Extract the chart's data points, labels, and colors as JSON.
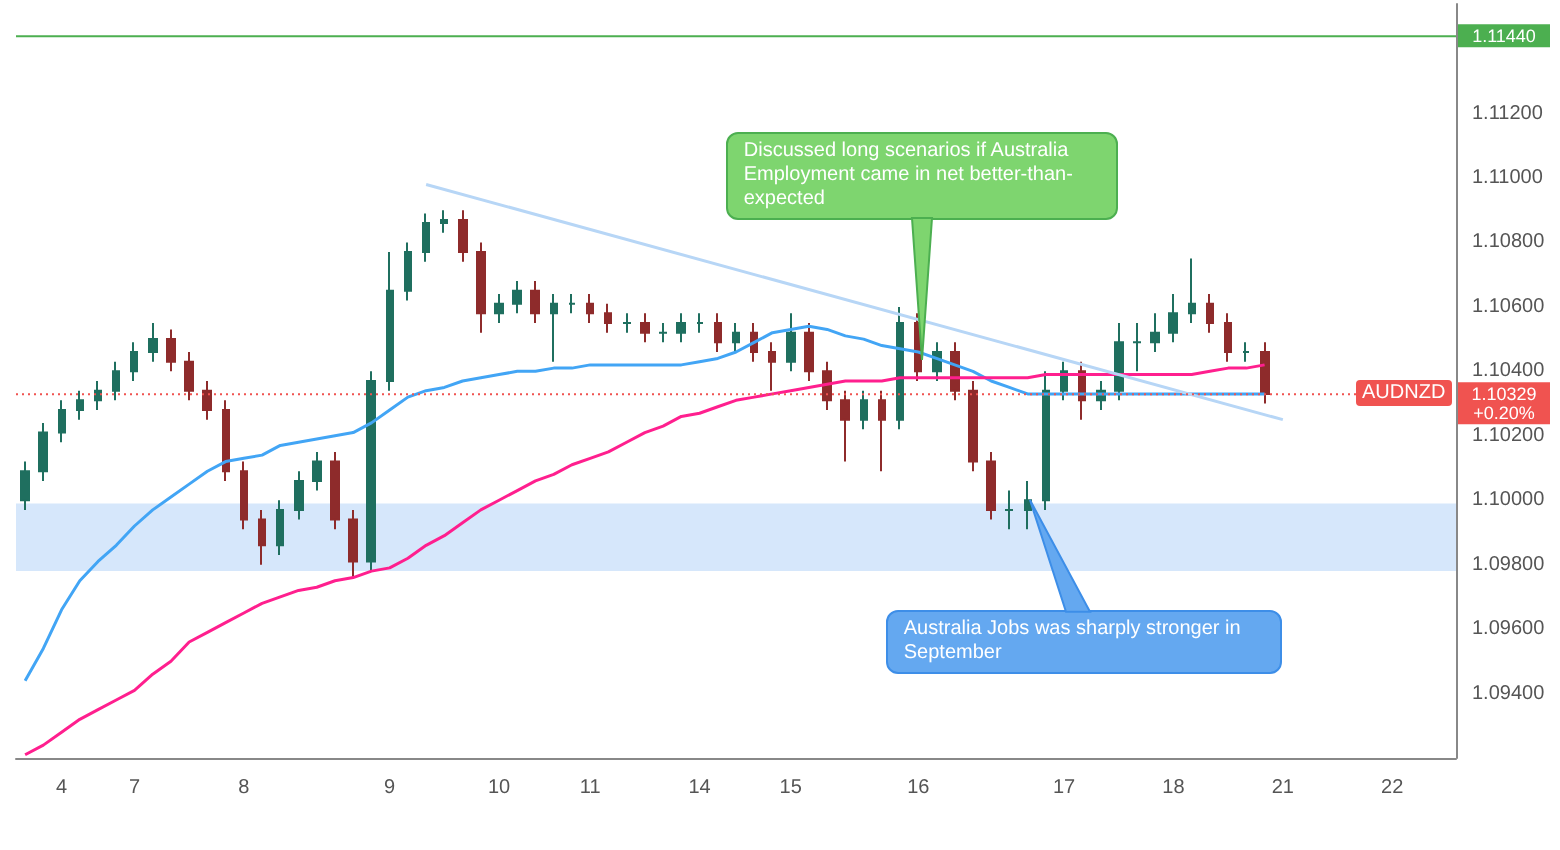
{
  "chart_data": {
    "type": "candlestick",
    "categories": [
      null,
      null,
      "4",
      null,
      null,
      null,
      "7",
      null,
      null,
      null,
      null,
      null,
      "8",
      null,
      null,
      null,
      null,
      null,
      null,
      null,
      "9",
      null,
      null,
      null,
      null,
      null,
      "10",
      null,
      null,
      null,
      null,
      "11",
      null,
      null,
      null,
      null,
      null,
      "14",
      null,
      null,
      null,
      null,
      "15",
      null,
      null,
      null,
      null,
      null,
      null,
      "16",
      null,
      null,
      null,
      null,
      null,
      null,
      null,
      "17",
      null,
      null,
      null,
      null,
      null,
      "18",
      null,
      null,
      null,
      null,
      null,
      "21",
      null,
      null,
      null,
      null,
      null,
      "22",
      null,
      null,
      null
    ],
    "ylim": [
      1.092,
      1.1154
    ],
    "yticks": [
      {
        "value": 1.094,
        "label": "1.09400"
      },
      {
        "value": 1.096,
        "label": "1.09600"
      },
      {
        "value": 1.098,
        "label": "1.09800"
      },
      {
        "value": 1.1,
        "label": "1.10000"
      },
      {
        "value": 1.102,
        "label": "1.10200"
      },
      {
        "value": 1.104,
        "label": "1.10400"
      },
      {
        "value": 1.106,
        "label": "1.10600"
      },
      {
        "value": 1.108,
        "label": "1.10800"
      },
      {
        "value": 1.11,
        "label": "1.11000"
      },
      {
        "value": 1.112,
        "label": "1.11200"
      }
    ],
    "grid": false,
    "series": [
      {
        "ohlc": [
          [
            1.1,
            1.1012,
            1.0997,
            1.1009
          ],
          [
            1.1009,
            1.1024,
            1.1006,
            1.1021
          ],
          [
            1.1021,
            1.1031,
            1.1018,
            1.1028
          ],
          [
            1.1028,
            1.1034,
            1.1025,
            1.1031
          ],
          [
            1.1031,
            1.1037,
            1.1028,
            1.1034
          ],
          [
            1.1034,
            1.1043,
            1.1031,
            1.104
          ],
          [
            1.104,
            1.1049,
            1.1037,
            1.1046
          ],
          [
            1.1046,
            1.1055,
            1.1043,
            1.105
          ],
          [
            1.105,
            1.1053,
            1.104,
            1.1043
          ],
          [
            1.1043,
            1.1046,
            1.1031,
            1.1034
          ],
          [
            1.1034,
            1.1037,
            1.1025,
            1.1028
          ],
          [
            1.1028,
            1.1031,
            1.1006,
            1.1009
          ],
          [
            1.1009,
            1.1012,
            1.0991,
            1.0994
          ],
          [
            1.0994,
            1.0997,
            1.098,
            1.0986
          ],
          [
            1.0986,
            1.1,
            1.0983,
            1.0997
          ],
          [
            1.0997,
            1.1009,
            1.0994,
            1.1006
          ],
          [
            1.1006,
            1.1015,
            1.1003,
            1.1012
          ],
          [
            1.1012,
            1.1015,
            1.0991,
            1.0994
          ],
          [
            1.0994,
            1.0997,
            1.0976,
            1.0981
          ],
          [
            1.0981,
            1.104,
            1.0978,
            1.1037
          ],
          [
            1.1037,
            1.1077,
            1.1034,
            1.1065
          ],
          [
            1.1065,
            1.108,
            1.1062,
            1.1077
          ],
          [
            1.1077,
            1.1089,
            1.1074,
            1.1086
          ],
          [
            1.1086,
            1.109,
            1.1083,
            1.1087
          ],
          [
            1.1087,
            1.109,
            1.1074,
            1.1077
          ],
          [
            1.1077,
            1.108,
            1.1052,
            1.1058
          ],
          [
            1.1058,
            1.1064,
            1.1055,
            1.1061
          ],
          [
            1.1061,
            1.1068,
            1.1058,
            1.1065
          ],
          [
            1.1065,
            1.1068,
            1.1055,
            1.1058
          ],
          [
            1.1058,
            1.1064,
            1.1043,
            1.1061
          ],
          [
            1.1061,
            1.1064,
            1.1058,
            1.1061
          ],
          [
            1.1061,
            1.1064,
            1.1055,
            1.1058
          ],
          [
            1.1058,
            1.1061,
            1.1052,
            1.1055
          ],
          [
            1.1055,
            1.1058,
            1.1052,
            1.1055
          ],
          [
            1.1055,
            1.1058,
            1.1049,
            1.1052
          ],
          [
            1.1052,
            1.1055,
            1.1049,
            1.1052
          ],
          [
            1.1052,
            1.1058,
            1.1049,
            1.1055
          ],
          [
            1.1055,
            1.1058,
            1.1052,
            1.1055
          ],
          [
            1.1055,
            1.1058,
            1.1046,
            1.1049
          ],
          [
            1.1049,
            1.1055,
            1.1046,
            1.1052
          ],
          [
            1.1052,
            1.1055,
            1.1043,
            1.1046
          ],
          [
            1.1046,
            1.1049,
            1.1034,
            1.1043
          ],
          [
            1.1043,
            1.1058,
            1.104,
            1.1052
          ],
          [
            1.1052,
            1.1055,
            1.1037,
            1.104
          ],
          [
            1.104,
            1.1043,
            1.1028,
            1.1031
          ],
          [
            1.1031,
            1.1034,
            1.1012,
            1.1025
          ],
          [
            1.1025,
            1.1034,
            1.1022,
            1.1031
          ],
          [
            1.1031,
            1.1034,
            1.1009,
            1.1025
          ],
          [
            1.1025,
            1.106,
            1.1022,
            1.1055
          ],
          [
            1.1055,
            1.1058,
            1.1037,
            1.104
          ],
          [
            1.104,
            1.1049,
            1.1037,
            1.1046
          ],
          [
            1.1046,
            1.1049,
            1.1031,
            1.1034
          ],
          [
            1.1034,
            1.1037,
            1.1009,
            1.1012
          ],
          [
            1.1012,
            1.1015,
            1.0994,
            1.0997
          ],
          [
            1.0997,
            1.1003,
            1.0991,
            1.0997
          ],
          [
            1.0997,
            1.1006,
            1.0991,
            1.1
          ],
          [
            1.1,
            1.104,
            1.0997,
            1.1034
          ],
          [
            1.1034,
            1.1043,
            1.1031,
            1.104
          ],
          [
            1.104,
            1.1043,
            1.1025,
            1.1031
          ],
          [
            1.1031,
            1.1037,
            1.1028,
            1.1034
          ],
          [
            1.1034,
            1.1055,
            1.1031,
            1.1049
          ],
          [
            1.1049,
            1.1055,
            1.104,
            1.1049
          ],
          [
            1.1049,
            1.1058,
            1.1046,
            1.1052
          ],
          [
            1.1052,
            1.1064,
            1.1049,
            1.1058
          ],
          [
            1.1058,
            1.1075,
            1.1055,
            1.1061
          ],
          [
            1.1061,
            1.1064,
            1.1052,
            1.1055
          ],
          [
            1.1055,
            1.1058,
            1.1043,
            1.1046
          ],
          [
            1.1046,
            1.1049,
            1.1043,
            1.1046
          ],
          [
            1.1046,
            1.1049,
            1.103,
            1.1033
          ],
          null,
          null,
          null,
          null,
          null,
          null,
          null,
          null,
          null,
          null
        ],
        "colors": [
          "#1f6f5f",
          "#1f6f5f",
          "#1f6f5f",
          "#1f6f5f",
          "#1f6f5f",
          "#1f6f5f",
          "#1f6f5f",
          "#1f6f5f",
          "#8e2b2b",
          "#8e2b2b",
          "#8e2b2b",
          "#8e2b2b",
          "#8e2b2b",
          "#8e2b2b",
          "#1f6f5f",
          "#1f6f5f",
          "#1f6f5f",
          "#8e2b2b",
          "#8e2b2b",
          "#1f6f5f",
          "#1f6f5f",
          "#1f6f5f",
          "#1f6f5f",
          "#1f6f5f",
          "#8e2b2b",
          "#8e2b2b",
          "#1f6f5f",
          "#1f6f5f",
          "#8e2b2b",
          "#1f6f5f",
          "#1f6f5f",
          "#8e2b2b",
          "#8e2b2b",
          "#1f6f5f",
          "#8e2b2b",
          "#1f6f5f",
          "#1f6f5f",
          "#1f6f5f",
          "#8e2b2b",
          "#1f6f5f",
          "#8e2b2b",
          "#8e2b2b",
          "#1f6f5f",
          "#8e2b2b",
          "#8e2b2b",
          "#8e2b2b",
          "#1f6f5f",
          "#8e2b2b",
          "#1f6f5f",
          "#8e2b2b",
          "#1f6f5f",
          "#8e2b2b",
          "#8e2b2b",
          "#8e2b2b",
          "#1f6f5f",
          "#1f6f5f",
          "#1f6f5f",
          "#1f6f5f",
          "#8e2b2b",
          "#1f6f5f",
          "#1f6f5f",
          "#1f6f5f",
          "#1f6f5f",
          "#1f6f5f",
          "#1f6f5f",
          "#8e2b2b",
          "#8e2b2b",
          "#1f6f5f",
          "#8e2b2b",
          null,
          null,
          null,
          null,
          null,
          null,
          null,
          null,
          null,
          null
        ]
      },
      {
        "type": "line",
        "color": "#42a5f5",
        "values": [
          1.0944,
          1.0954,
          1.0966,
          1.0975,
          1.0981,
          1.0986,
          1.0992,
          1.0997,
          1.1001,
          1.1005,
          1.1009,
          1.1012,
          1.1013,
          1.1014,
          1.1017,
          1.1018,
          1.1019,
          1.102,
          1.1021,
          1.1024,
          1.1028,
          1.1032,
          1.1034,
          1.1035,
          1.1037,
          1.1038,
          1.1039,
          1.104,
          1.104,
          1.1041,
          1.1041,
          1.1042,
          1.1042,
          1.1042,
          1.1042,
          1.1042,
          1.1042,
          1.1043,
          1.1044,
          1.1046,
          1.1049,
          1.1052,
          1.1053,
          1.1054,
          1.1053,
          1.1051,
          1.105,
          1.1048,
          1.1047,
          1.1046,
          1.1044,
          1.1042,
          1.104,
          1.1037,
          1.1035,
          1.1033,
          1.1033,
          1.1033,
          1.1033,
          1.1033,
          1.1033,
          1.1033,
          1.1033,
          1.1033,
          1.1033,
          1.1033,
          1.1033,
          1.1033,
          1.1033,
          null,
          null,
          null,
          null,
          null,
          null,
          null,
          null,
          null,
          null
        ]
      },
      {
        "type": "line",
        "color": "#ff1f8e",
        "values": [
          1.0921,
          1.0924,
          1.0928,
          1.0932,
          1.0935,
          1.0938,
          1.0941,
          1.0946,
          1.095,
          1.0956,
          1.0959,
          1.0962,
          1.0965,
          1.0968,
          1.097,
          1.0972,
          1.0973,
          1.0975,
          1.0976,
          1.0978,
          1.0979,
          1.0982,
          1.0986,
          1.0989,
          1.0993,
          1.0997,
          1.1,
          1.1003,
          1.1006,
          1.1008,
          1.1011,
          1.1013,
          1.1015,
          1.1018,
          1.1021,
          1.1023,
          1.1026,
          1.1027,
          1.1029,
          1.1031,
          1.1032,
          1.1033,
          1.1034,
          1.1035,
          1.1036,
          1.1037,
          1.1037,
          1.1037,
          1.1038,
          1.1038,
          1.1038,
          1.1038,
          1.1038,
          1.1038,
          1.1038,
          1.1038,
          1.1039,
          1.1039,
          1.1039,
          1.1039,
          1.1039,
          1.1039,
          1.1039,
          1.1039,
          1.1039,
          1.104,
          1.1041,
          1.1041,
          1.1042,
          null,
          null,
          null,
          null,
          null,
          null,
          null,
          null,
          null,
          null
        ]
      },
      {
        "type": "line",
        "color": "#b7d6f6",
        "values": [
          null,
          null,
          null,
          null,
          null,
          null,
          null,
          null,
          null,
          null,
          null,
          null,
          null,
          null,
          null,
          null,
          null,
          null,
          null,
          null,
          null,
          null,
          1.1098,
          null,
          null,
          null,
          null,
          null,
          null,
          null,
          null,
          null,
          null,
          null,
          null,
          null,
          null,
          null,
          null,
          null,
          null,
          null,
          null,
          null,
          null,
          null,
          null,
          null,
          null,
          null,
          null,
          null,
          null,
          null,
          null,
          null,
          null,
          null,
          null,
          null,
          null,
          null,
          null,
          null,
          null,
          null,
          null,
          null,
          null,
          1.1025,
          null,
          null,
          null,
          null,
          null,
          null,
          null,
          null,
          null
        ]
      }
    ],
    "bands": [
      {
        "axis": "y",
        "from": 1.0978,
        "to": 1.0999,
        "color": "#cfe3fa"
      }
    ],
    "ref_lines": [
      {
        "axis": "y",
        "value": 1.1144,
        "label": "1.11440",
        "color": "#4caf50",
        "line_style": "solid"
      },
      {
        "axis": "y",
        "value": 1.10329,
        "label": "1.10329\n+0.20%",
        "color": "#f05350",
        "line_style": "dotted"
      }
    ],
    "annotations": [
      "Discussed long scenarios if Australia Employment came in net better-than-expected",
      "Australia Jobs was sharply stronger in September",
      "AUDNZD"
    ]
  }
}
